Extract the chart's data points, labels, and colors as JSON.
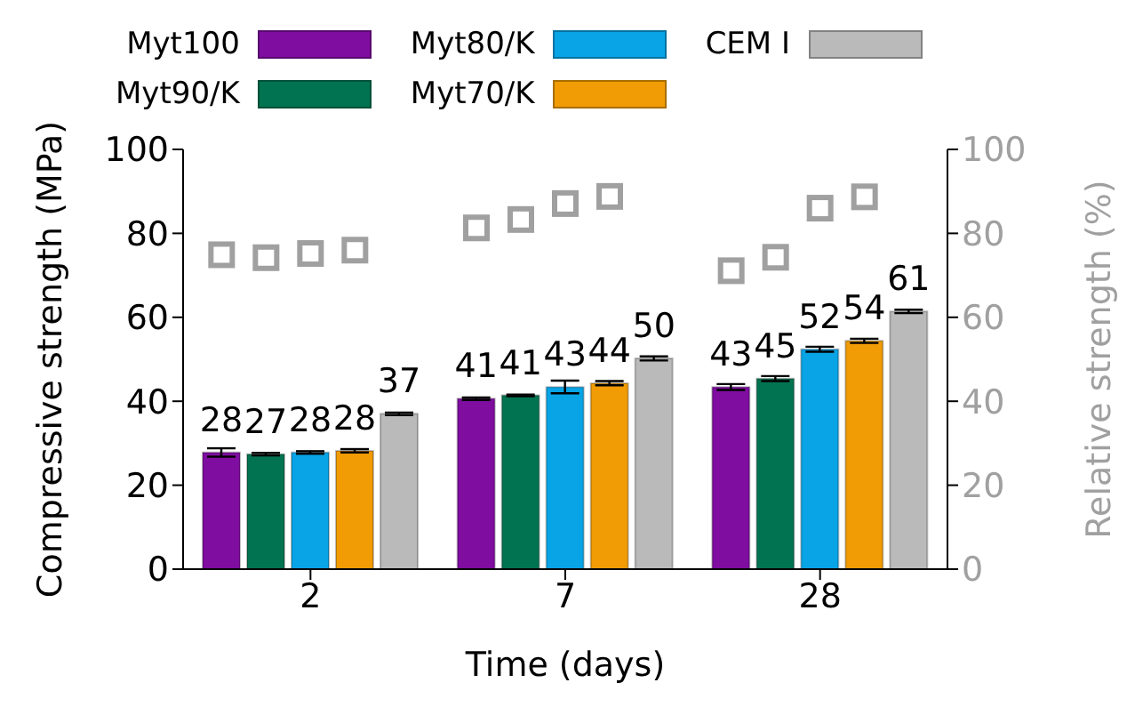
{
  "chart_data": {
    "type": "bar",
    "xlabel": "Time (days)",
    "ylabel": "Compressive strength (MPa)",
    "y2label": "Relative strength (%)",
    "categories": [
      "2",
      "7",
      "28"
    ],
    "ylim": [
      0,
      100
    ],
    "yticks": [
      0,
      20,
      40,
      60,
      80,
      100
    ],
    "y2lim": [
      0,
      100
    ],
    "y2ticks": [
      0,
      20,
      40,
      60,
      80,
      100
    ],
    "legend": "top",
    "grid": false,
    "series": [
      {
        "name": "Myt100",
        "color": "#7f0da0",
        "values": [
          27.8,
          40.6,
          43.4
        ],
        "errors": [
          1,
          0.3,
          0.7
        ],
        "value_labels": [
          "28",
          "41",
          "43"
        ]
      },
      {
        "name": "Myt90/K",
        "color": "#027350",
        "values": [
          27.4,
          41.4,
          45.4
        ],
        "errors": [
          0.3,
          0.2,
          0.6
        ],
        "value_labels": [
          "27",
          "41",
          "45"
        ]
      },
      {
        "name": "Myt80/K",
        "color": "#08a4e6",
        "values": [
          27.8,
          43.4,
          52.4
        ],
        "errors": [
          0.3,
          1.5,
          0.6
        ],
        "value_labels": [
          "28",
          "43",
          "52"
        ]
      },
      {
        "name": "Myt70/K",
        "color": "#f19c04",
        "values": [
          28.2,
          44.3,
          54.4
        ],
        "errors": [
          0.4,
          0.5,
          0.5
        ],
        "value_labels": [
          "28",
          "44",
          "54"
        ]
      },
      {
        "name": "CEM I",
        "color": "#bababa",
        "values": [
          37.0,
          50.2,
          61.4
        ],
        "errors": [
          0.3,
          0.5,
          0.4
        ],
        "value_labels": [
          "37",
          "50",
          "61"
        ]
      },
      {
        "type": "scatter",
        "axis": "y2",
        "marker": "square",
        "color": "#a0a0a0",
        "values": [
          74.9,
          81.3,
          71.1
        ]
      },
      {
        "type": "scatter",
        "axis": "y2",
        "marker": "square",
        "color": "#a0a0a0",
        "values": [
          74.2,
          83.3,
          74.3
        ]
      },
      {
        "type": "scatter",
        "axis": "y2",
        "marker": "square",
        "color": "#a0a0a0",
        "values": [
          75.2,
          87.1,
          86.0
        ]
      },
      {
        "type": "scatter",
        "axis": "y2",
        "marker": "square",
        "color": "#a0a0a0",
        "values": [
          76.0,
          88.8,
          88.7
        ]
      }
    ]
  }
}
